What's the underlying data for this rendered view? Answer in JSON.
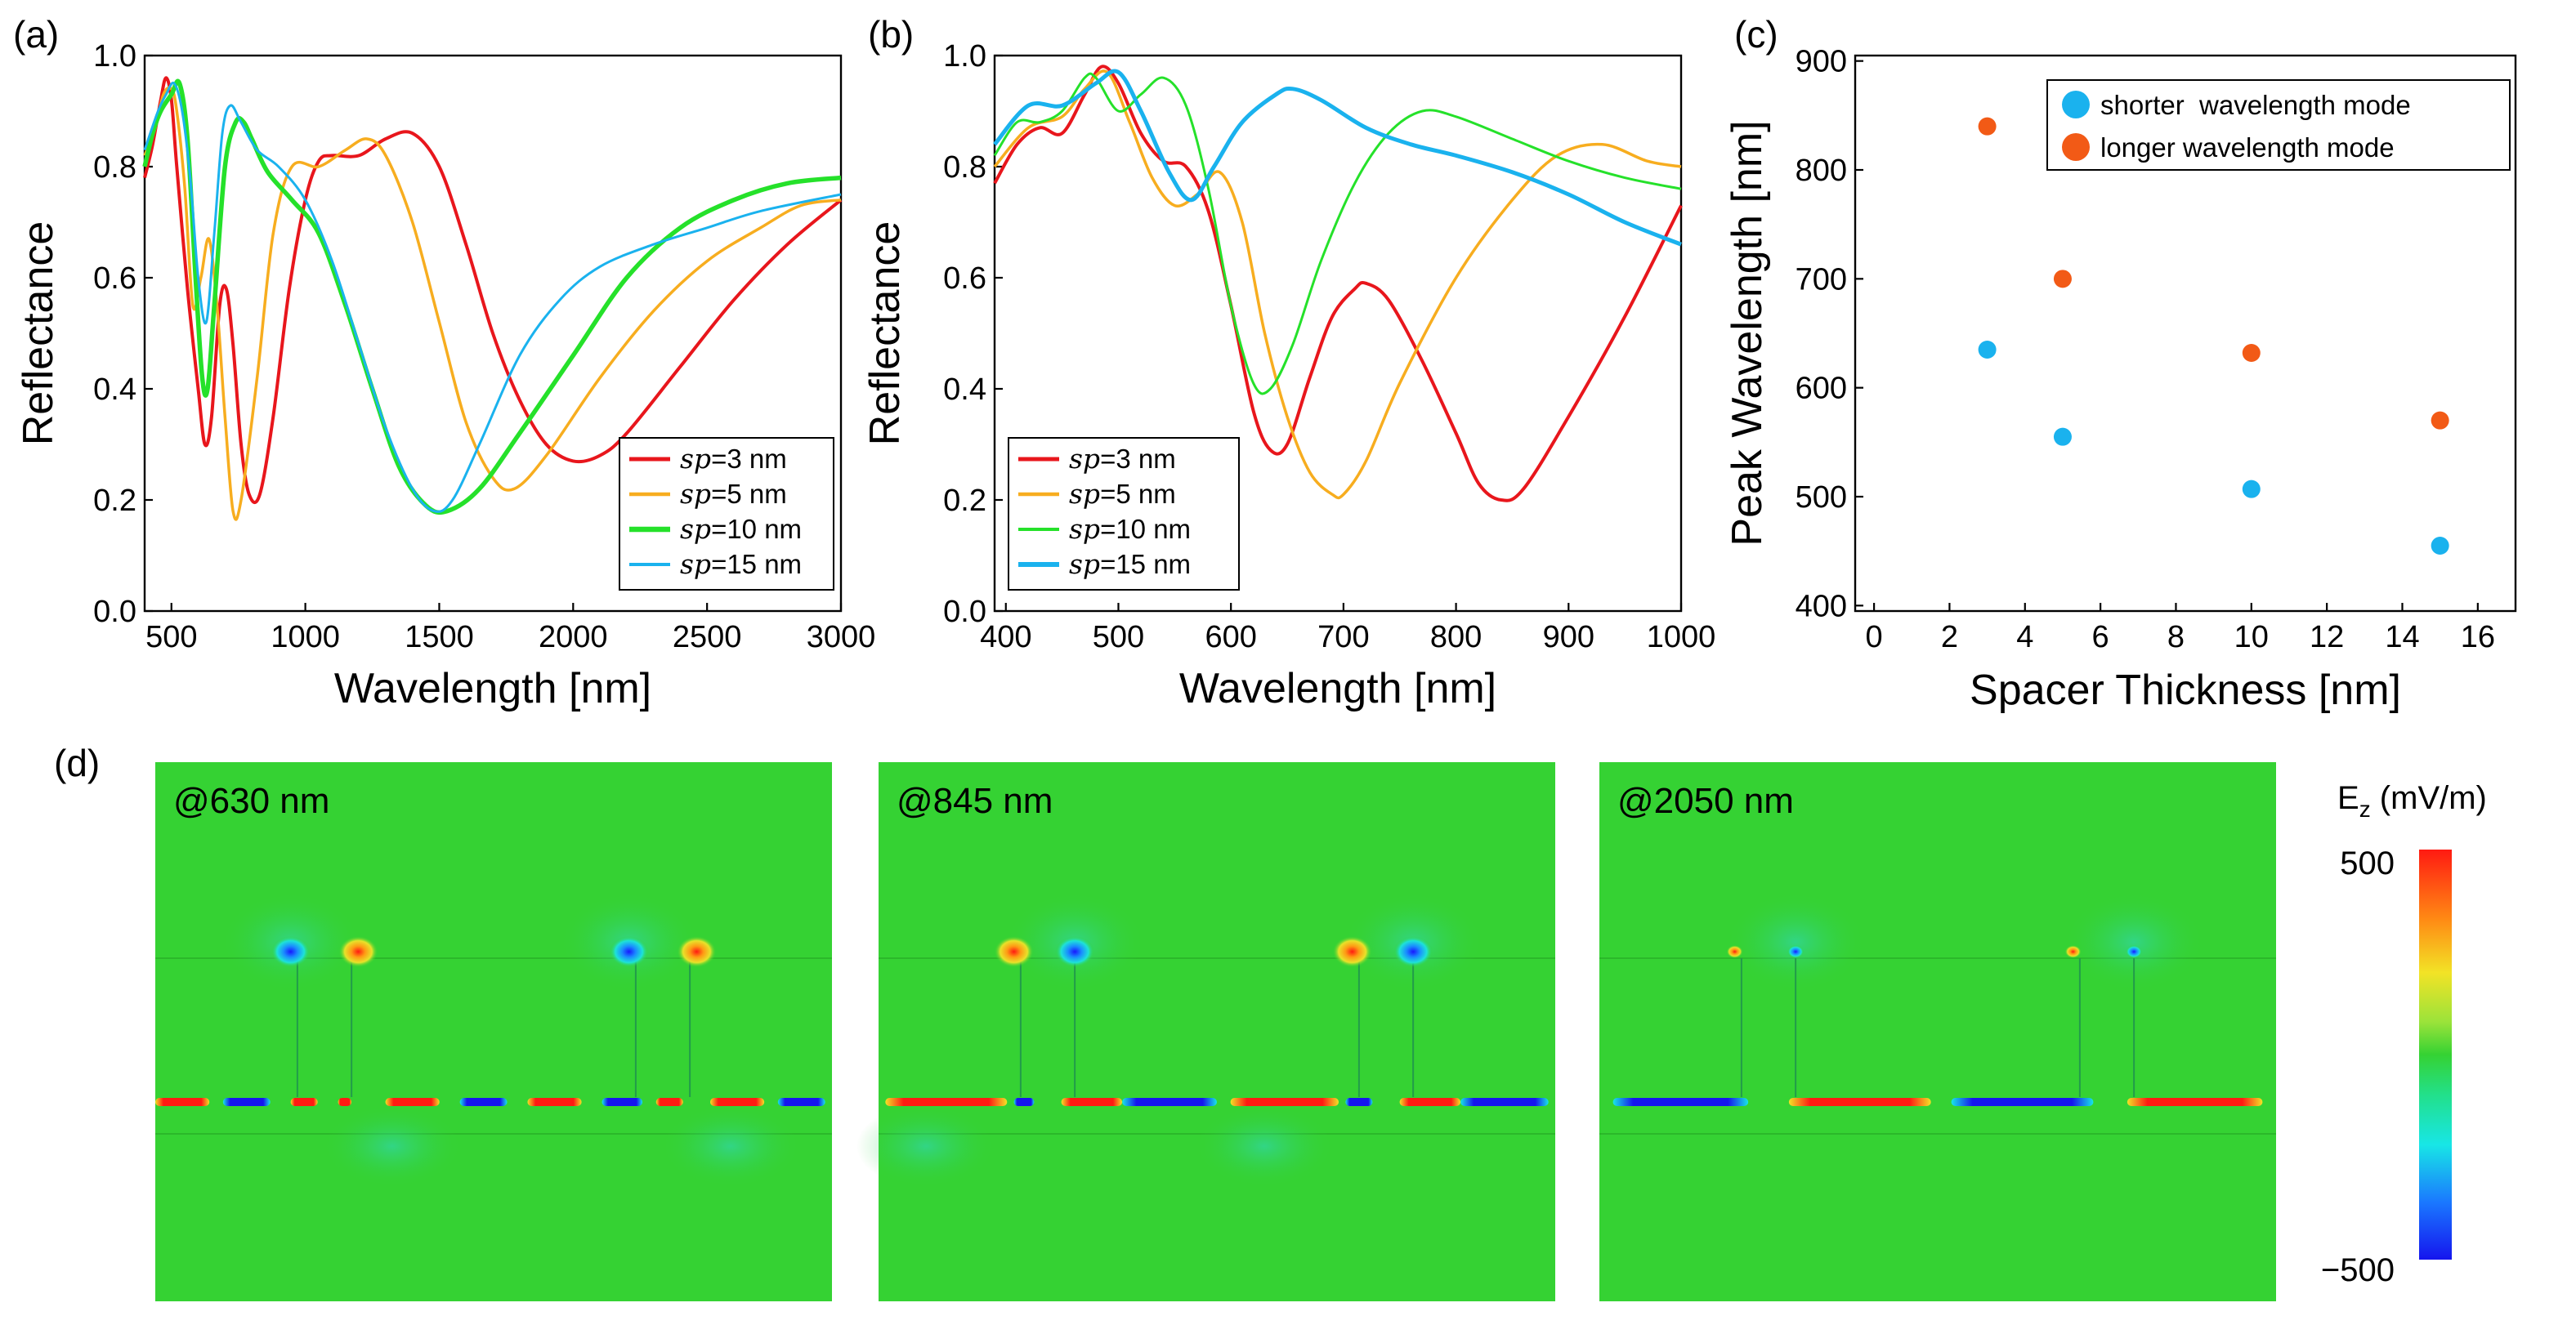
{
  "colors": {
    "sp3": "#e8161c",
    "sp5": "#f7ad1f",
    "sp10": "#25e12a",
    "sp15": "#1ab2ee",
    "short_mode": "#1ab2ee",
    "long_mode": "#f25a16",
    "field_bg": "#35d233"
  },
  "chart_data": [
    {
      "id": "a",
      "panel_label": "(a)",
      "type": "line",
      "xlabel": "Wavelength [nm]",
      "ylabel": "Reflectance",
      "xlim": [
        400,
        3000
      ],
      "ylim": [
        0,
        1.0
      ],
      "xticks": [
        500,
        1000,
        1500,
        2000,
        2500,
        3000
      ],
      "xtick_labels": [
        "500",
        "1000",
        "1500",
        "2000",
        "2500",
        "3000"
      ],
      "yticks": [
        0,
        0.2,
        0.4,
        0.6,
        0.8,
        1.0
      ],
      "ytick_labels": [
        "0.0",
        "0.2",
        "0.4",
        "0.6",
        "0.8",
        "1.0"
      ],
      "legend": {
        "placement": "bottom-right",
        "prefix": "sp",
        "entries": [
          "=3 nm",
          "=5 nm",
          "=10 nm",
          "=15 nm"
        ]
      },
      "series": [
        {
          "name": "sp=3 nm",
          "color_key": "sp3",
          "points": [
            [
              400,
              0.78
            ],
            [
              430,
              0.84
            ],
            [
              460,
              0.92
            ],
            [
              480,
              0.96
            ],
            [
              500,
              0.92
            ],
            [
              520,
              0.8
            ],
            [
              560,
              0.58
            ],
            [
              600,
              0.4
            ],
            [
              625,
              0.3
            ],
            [
              650,
              0.35
            ],
            [
              680,
              0.55
            ],
            [
              705,
              0.58
            ],
            [
              730,
              0.48
            ],
            [
              760,
              0.3
            ],
            [
              790,
              0.21
            ],
            [
              830,
              0.21
            ],
            [
              880,
              0.35
            ],
            [
              940,
              0.58
            ],
            [
              1000,
              0.74
            ],
            [
              1050,
              0.81
            ],
            [
              1100,
              0.82
            ],
            [
              1200,
              0.82
            ],
            [
              1300,
              0.85
            ],
            [
              1400,
              0.86
            ],
            [
              1500,
              0.8
            ],
            [
              1600,
              0.66
            ],
            [
              1700,
              0.5
            ],
            [
              1800,
              0.38
            ],
            [
              1900,
              0.3
            ],
            [
              2000,
              0.27
            ],
            [
              2100,
              0.28
            ],
            [
              2200,
              0.32
            ],
            [
              2400,
              0.44
            ],
            [
              2600,
              0.56
            ],
            [
              2800,
              0.66
            ],
            [
              3000,
              0.74
            ]
          ]
        },
        {
          "name": "sp=5 nm",
          "color_key": "sp5",
          "points": [
            [
              400,
              0.82
            ],
            [
              440,
              0.87
            ],
            [
              470,
              0.93
            ],
            [
              500,
              0.94
            ],
            [
              520,
              0.9
            ],
            [
              550,
              0.76
            ],
            [
              580,
              0.55
            ],
            [
              610,
              0.6
            ],
            [
              640,
              0.67
            ],
            [
              670,
              0.55
            ],
            [
              700,
              0.35
            ],
            [
              730,
              0.18
            ],
            [
              760,
              0.2
            ],
            [
              820,
              0.42
            ],
            [
              880,
              0.68
            ],
            [
              950,
              0.8
            ],
            [
              1050,
              0.8
            ],
            [
              1150,
              0.83
            ],
            [
              1230,
              0.85
            ],
            [
              1300,
              0.82
            ],
            [
              1400,
              0.7
            ],
            [
              1500,
              0.52
            ],
            [
              1600,
              0.34
            ],
            [
              1700,
              0.24
            ],
            [
              1780,
              0.22
            ],
            [
              1900,
              0.28
            ],
            [
              2100,
              0.42
            ],
            [
              2300,
              0.54
            ],
            [
              2500,
              0.63
            ],
            [
              2700,
              0.69
            ],
            [
              2850,
              0.73
            ],
            [
              3000,
              0.74
            ]
          ]
        },
        {
          "name": "sp=10 nm",
          "color_key": "sp10",
          "points": [
            [
              400,
              0.8
            ],
            [
              430,
              0.86
            ],
            [
              460,
              0.9
            ],
            [
              500,
              0.93
            ],
            [
              530,
              0.95
            ],
            [
              560,
              0.85
            ],
            [
              590,
              0.6
            ],
            [
              615,
              0.42
            ],
            [
              635,
              0.4
            ],
            [
              660,
              0.55
            ],
            [
              700,
              0.8
            ],
            [
              740,
              0.88
            ],
            [
              770,
              0.88
            ],
            [
              800,
              0.85
            ],
            [
              860,
              0.79
            ],
            [
              950,
              0.74
            ],
            [
              1050,
              0.68
            ],
            [
              1150,
              0.55
            ],
            [
              1250,
              0.4
            ],
            [
              1350,
              0.26
            ],
            [
              1450,
              0.19
            ],
            [
              1530,
              0.18
            ],
            [
              1650,
              0.22
            ],
            [
              1800,
              0.32
            ],
            [
              2000,
              0.46
            ],
            [
              2200,
              0.6
            ],
            [
              2400,
              0.69
            ],
            [
              2600,
              0.74
            ],
            [
              2800,
              0.77
            ],
            [
              3000,
              0.78
            ]
          ]
        },
        {
          "name": "sp=15 nm",
          "color_key": "sp15",
          "points": [
            [
              400,
              0.83
            ],
            [
              450,
              0.9
            ],
            [
              480,
              0.93
            ],
            [
              510,
              0.95
            ],
            [
              540,
              0.9
            ],
            [
              570,
              0.78
            ],
            [
              600,
              0.6
            ],
            [
              630,
              0.52
            ],
            [
              660,
              0.68
            ],
            [
              690,
              0.86
            ],
            [
              720,
              0.91
            ],
            [
              760,
              0.88
            ],
            [
              820,
              0.83
            ],
            [
              900,
              0.8
            ],
            [
              1000,
              0.74
            ],
            [
              1100,
              0.63
            ],
            [
              1200,
              0.48
            ],
            [
              1300,
              0.33
            ],
            [
              1400,
              0.22
            ],
            [
              1480,
              0.18
            ],
            [
              1550,
              0.2
            ],
            [
              1650,
              0.3
            ],
            [
              1800,
              0.46
            ],
            [
              1950,
              0.56
            ],
            [
              2100,
              0.62
            ],
            [
              2300,
              0.66
            ],
            [
              2500,
              0.69
            ],
            [
              2700,
              0.72
            ],
            [
              3000,
              0.75
            ]
          ]
        }
      ]
    },
    {
      "id": "b",
      "panel_label": "(b)",
      "type": "line",
      "xlabel": "Wavelength [nm]",
      "ylabel": "Reflectance",
      "xlim": [
        390,
        1000
      ],
      "ylim": [
        0,
        1.0
      ],
      "xticks": [
        400,
        500,
        600,
        700,
        800,
        900,
        1000
      ],
      "xtick_labels": [
        "400",
        "500",
        "600",
        "700",
        "800",
        "900",
        "1000"
      ],
      "yticks": [
        0,
        0.2,
        0.4,
        0.6,
        0.8,
        1.0
      ],
      "ytick_labels": [
        "0.0",
        "0.2",
        "0.4",
        "0.6",
        "0.8",
        "1.0"
      ],
      "legend": {
        "placement": "bottom-left",
        "prefix": "sp",
        "entries": [
          "=3 nm",
          "=5 nm",
          "=10 nm",
          "=15 nm"
        ]
      },
      "series": [
        {
          "name": "sp=3 nm",
          "color_key": "sp3",
          "points": [
            [
              390,
              0.77
            ],
            [
              410,
              0.84
            ],
            [
              430,
              0.87
            ],
            [
              450,
              0.86
            ],
            [
              470,
              0.93
            ],
            [
              485,
              0.98
            ],
            [
              500,
              0.95
            ],
            [
              520,
              0.86
            ],
            [
              540,
              0.81
            ],
            [
              560,
              0.8
            ],
            [
              580,
              0.72
            ],
            [
              600,
              0.55
            ],
            [
              620,
              0.36
            ],
            [
              635,
              0.29
            ],
            [
              650,
              0.3
            ],
            [
              670,
              0.42
            ],
            [
              690,
              0.53
            ],
            [
              710,
              0.58
            ],
            [
              720,
              0.59
            ],
            [
              740,
              0.56
            ],
            [
              770,
              0.45
            ],
            [
              800,
              0.32
            ],
            [
              820,
              0.23
            ],
            [
              840,
              0.2
            ],
            [
              860,
              0.22
            ],
            [
              900,
              0.35
            ],
            [
              950,
              0.53
            ],
            [
              1000,
              0.73
            ]
          ]
        },
        {
          "name": "sp=5 nm",
          "color_key": "sp5",
          "points": [
            [
              390,
              0.8
            ],
            [
              420,
              0.87
            ],
            [
              450,
              0.89
            ],
            [
              470,
              0.94
            ],
            [
              490,
              0.97
            ],
            [
              510,
              0.88
            ],
            [
              530,
              0.78
            ],
            [
              550,
              0.73
            ],
            [
              570,
              0.75
            ],
            [
              590,
              0.79
            ],
            [
              610,
              0.7
            ],
            [
              630,
              0.5
            ],
            [
              650,
              0.35
            ],
            [
              670,
              0.25
            ],
            [
              690,
              0.21
            ],
            [
              700,
              0.21
            ],
            [
              720,
              0.27
            ],
            [
              750,
              0.41
            ],
            [
              800,
              0.6
            ],
            [
              850,
              0.74
            ],
            [
              890,
              0.82
            ],
            [
              930,
              0.84
            ],
            [
              970,
              0.81
            ],
            [
              1000,
              0.8
            ]
          ]
        },
        {
          "name": "sp=10 nm",
          "color_key": "sp10",
          "points": [
            [
              390,
              0.82
            ],
            [
              410,
              0.88
            ],
            [
              430,
              0.88
            ],
            [
              450,
              0.9
            ],
            [
              470,
              0.96
            ],
            [
              480,
              0.96
            ],
            [
              500,
              0.9
            ],
            [
              520,
              0.93
            ],
            [
              540,
              0.96
            ],
            [
              560,
              0.91
            ],
            [
              580,
              0.76
            ],
            [
              600,
              0.55
            ],
            [
              620,
              0.41
            ],
            [
              635,
              0.4
            ],
            [
              655,
              0.48
            ],
            [
              680,
              0.63
            ],
            [
              710,
              0.77
            ],
            [
              740,
              0.86
            ],
            [
              770,
              0.9
            ],
            [
              800,
              0.89
            ],
            [
              850,
              0.85
            ],
            [
              900,
              0.81
            ],
            [
              950,
              0.78
            ],
            [
              1000,
              0.76
            ]
          ]
        },
        {
          "name": "sp=15 nm",
          "color_key": "sp15",
          "points": [
            [
              390,
              0.84
            ],
            [
              420,
              0.91
            ],
            [
              450,
              0.91
            ],
            [
              480,
              0.95
            ],
            [
              500,
              0.97
            ],
            [
              520,
              0.9
            ],
            [
              545,
              0.79
            ],
            [
              565,
              0.74
            ],
            [
              585,
              0.8
            ],
            [
              610,
              0.88
            ],
            [
              640,
              0.93
            ],
            [
              655,
              0.94
            ],
            [
              680,
              0.92
            ],
            [
              720,
              0.87
            ],
            [
              760,
              0.84
            ],
            [
              800,
              0.82
            ],
            [
              850,
              0.79
            ],
            [
              900,
              0.75
            ],
            [
              950,
              0.7
            ],
            [
              1000,
              0.66
            ]
          ]
        }
      ]
    },
    {
      "id": "c",
      "panel_label": "(c)",
      "type": "scatter",
      "xlabel": "Spacer Thickness [nm]",
      "ylabel": "Peak Wavelength [nm]",
      "xlim": [
        -0.5,
        17
      ],
      "ylim": [
        395,
        905
      ],
      "xticks": [
        0,
        2,
        4,
        6,
        8,
        10,
        12,
        14,
        16
      ],
      "xtick_labels": [
        "0",
        "2",
        "4",
        "6",
        "8",
        "10",
        "12",
        "14",
        "16"
      ],
      "yticks": [
        400,
        500,
        600,
        700,
        800,
        900
      ],
      "ytick_labels": [
        "400",
        "500",
        "600",
        "700",
        "800",
        "900"
      ],
      "legend": {
        "placement": "top-right",
        "entries": [
          "shorter  wavelength mode",
          "longer wavelength mode"
        ]
      },
      "series": [
        {
          "name": "shorter  wavelength mode",
          "color_key": "short_mode",
          "x": [
            3,
            5,
            10,
            15
          ],
          "y": [
            635,
            555,
            507,
            455
          ]
        },
        {
          "name": "longer wavelength mode",
          "color_key": "long_mode",
          "x": [
            3,
            5,
            10,
            15
          ],
          "y": [
            840,
            700,
            632,
            570
          ]
        }
      ]
    }
  ],
  "field_maps": {
    "panel_label": "(d)",
    "panels": [
      {
        "label": "@630 nm"
      },
      {
        "label": "@845 nm"
      },
      {
        "label": "@2050 nm"
      }
    ],
    "colorbar": {
      "title_main": "E",
      "title_sub": "z",
      "title_unit": " (mV/m)",
      "max_label": "500",
      "min_label": "−500"
    }
  }
}
